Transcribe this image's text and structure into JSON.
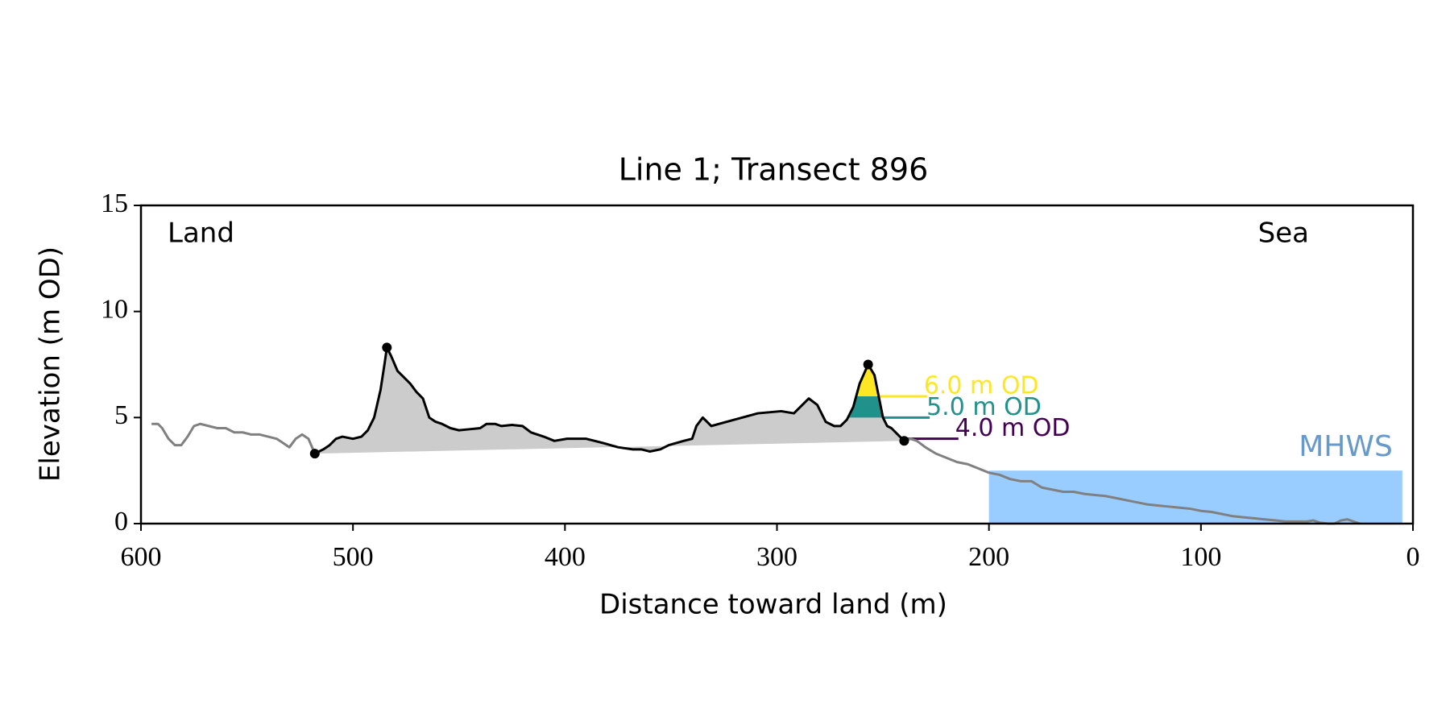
{
  "chart_data": {
    "type": "line",
    "title": "Line 1; Transect 896",
    "xlabel": "Distance toward land (m)",
    "ylabel": "Elevation (m OD)",
    "xlim": [
      600,
      0
    ],
    "ylim": [
      0,
      15
    ],
    "xticks": [
      600,
      500,
      400,
      300,
      200,
      100,
      0
    ],
    "yticks": [
      0,
      5,
      10,
      15
    ],
    "annotations": [
      "Land",
      "Sea"
    ],
    "series": [
      {
        "color": "#808080",
        "x": [
          595,
          592,
          590,
          587,
          584,
          581,
          578,
          575,
          572,
          568,
          564,
          560,
          556,
          552,
          548,
          544,
          540,
          536,
          533,
          530,
          527,
          524,
          521,
          518
        ],
        "values": [
          4.7,
          4.7,
          4.5,
          4.0,
          3.7,
          3.7,
          4.1,
          4.6,
          4.7,
          4.6,
          4.5,
          4.5,
          4.3,
          4.3,
          4.2,
          4.2,
          4.1,
          4.0,
          3.8,
          3.6,
          4.0,
          4.2,
          4.0,
          3.3
        ]
      },
      {
        "color": "#000000",
        "fill": "#cccccc",
        "x": [
          518,
          514,
          511,
          508,
          505,
          500,
          496,
          493,
          490,
          487,
          485,
          484,
          482,
          479,
          476,
          473,
          470,
          467,
          464,
          461,
          458,
          454,
          450,
          445,
          440,
          437,
          433,
          430,
          425,
          420,
          416,
          410,
          405,
          399,
          390,
          382,
          375,
          368,
          364,
          360,
          355,
          351,
          344,
          340,
          338,
          335,
          331,
          320,
          309,
          298,
          292,
          285,
          281,
          277,
          273,
          270,
          267,
          264,
          261,
          257,
          254,
          252,
          250,
          248,
          246,
          243,
          240
        ],
        "values": [
          3.3,
          3.5,
          3.7,
          4.0,
          4.1,
          4.0,
          4.1,
          4.4,
          5.0,
          6.3,
          7.6,
          8.3,
          7.9,
          7.2,
          6.9,
          6.6,
          6.2,
          5.9,
          5.0,
          4.8,
          4.7,
          4.5,
          4.4,
          4.45,
          4.5,
          4.7,
          4.7,
          4.6,
          4.65,
          4.6,
          4.3,
          4.1,
          3.9,
          4.0,
          4.0,
          3.8,
          3.6,
          3.5,
          3.5,
          3.4,
          3.5,
          3.7,
          3.9,
          4.0,
          4.6,
          5.0,
          4.6,
          4.9,
          5.2,
          5.3,
          5.2,
          5.9,
          5.6,
          4.8,
          4.6,
          4.6,
          4.9,
          5.5,
          6.6,
          7.5,
          7.0,
          6.0,
          5.0,
          4.6,
          4.5,
          4.2,
          3.9
        ]
      },
      {
        "color": "#808080",
        "x": [
          240,
          237,
          234,
          230,
          225,
          220,
          215,
          210,
          205,
          200,
          195,
          190,
          185,
          180,
          175,
          170,
          165,
          160,
          155,
          150,
          145,
          140,
          135,
          130,
          125,
          120,
          115,
          110,
          105,
          100,
          95,
          90,
          85,
          80,
          75,
          70,
          65,
          60,
          55,
          50,
          47,
          44,
          40,
          37,
          34,
          31,
          28,
          25
        ],
        "values": [
          3.9,
          4.0,
          3.9,
          3.6,
          3.3,
          3.1,
          2.9,
          2.8,
          2.6,
          2.4,
          2.3,
          2.1,
          2.0,
          2.0,
          1.7,
          1.6,
          1.5,
          1.5,
          1.4,
          1.35,
          1.3,
          1.2,
          1.1,
          1.0,
          0.9,
          0.85,
          0.8,
          0.75,
          0.7,
          0.6,
          0.55,
          0.45,
          0.35,
          0.3,
          0.25,
          0.2,
          0.15,
          0.1,
          0.1,
          0.1,
          0.15,
          0.05,
          0.0,
          0.0,
          0.15,
          0.2,
          0.1,
          0.0
        ]
      }
    ],
    "points": {
      "color": "#000000",
      "x": [
        518,
        484,
        257,
        240
      ],
      "values": [
        3.3,
        8.3,
        7.5,
        3.9
      ]
    },
    "levels": [
      {
        "label": "6.0 m OD",
        "value": 6,
        "color": "#fde725",
        "fill": true
      },
      {
        "label": "5.0 m OD",
        "value": 5,
        "color": "#21918c",
        "fill": true
      },
      {
        "label": "4.0 m OD",
        "value": 4,
        "color": "#440154",
        "fill": false
      }
    ],
    "mhws": {
      "label": "MHWS",
      "value": 2.5,
      "x": [
        200,
        5
      ],
      "color": "#99ccff",
      "label_color": "#6699cc"
    }
  }
}
